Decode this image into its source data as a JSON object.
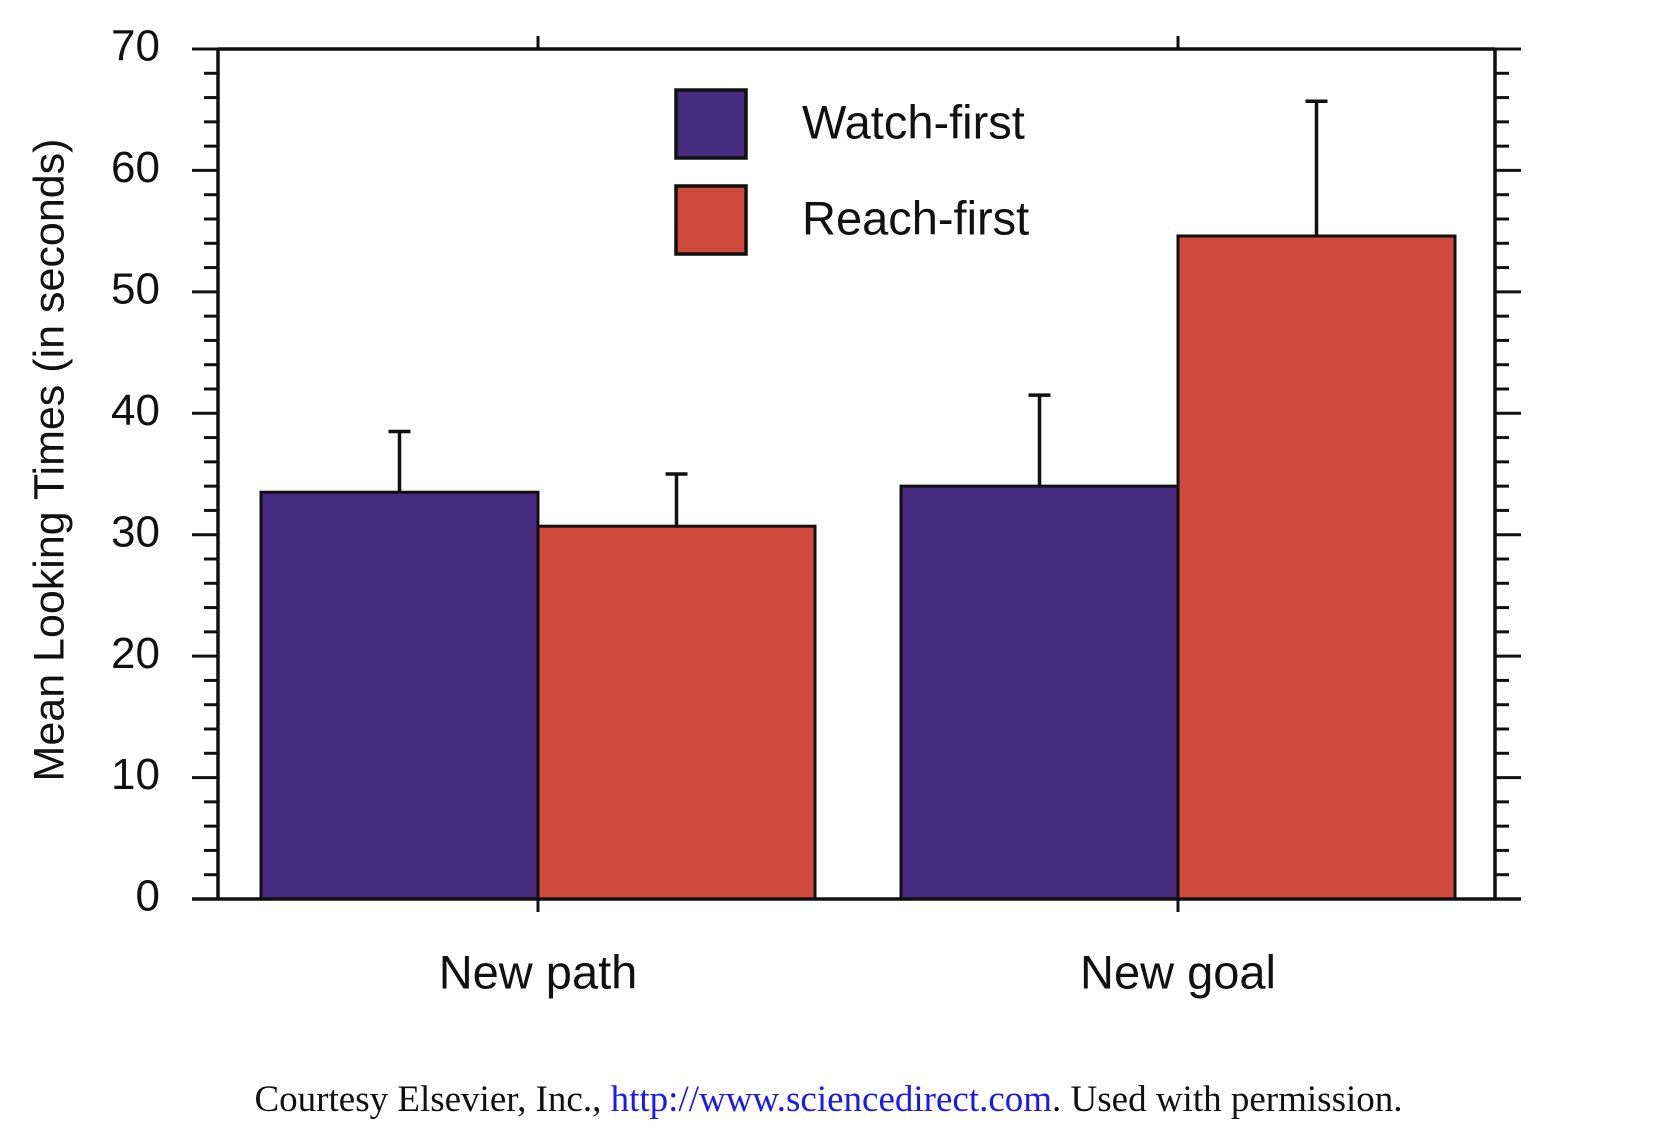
{
  "chart_data": {
    "type": "bar",
    "categories": [
      "New path",
      "New goal"
    ],
    "series": [
      {
        "name": "Watch-first",
        "values": [
          33.5,
          34.0
        ],
        "errors": [
          5.0,
          7.5
        ],
        "color": "#432a7e"
      },
      {
        "name": "Reach-first",
        "values": [
          30.7,
          54.6
        ],
        "errors": [
          4.3,
          11.1
        ],
        "color": "#cf4a3d"
      }
    ],
    "ylabel": "Mean Looking Times (in seconds)",
    "xlabel": "",
    "ylim": [
      0,
      70
    ],
    "yticks": [
      0,
      10,
      20,
      30,
      40,
      50,
      60,
      70
    ],
    "legend_position": "top-center",
    "grid": false
  },
  "credit": {
    "prefix": "Courtesy Elsevier, Inc., ",
    "link": "http://www.sciencedirect.com",
    "suffix": ". Used with permission."
  }
}
